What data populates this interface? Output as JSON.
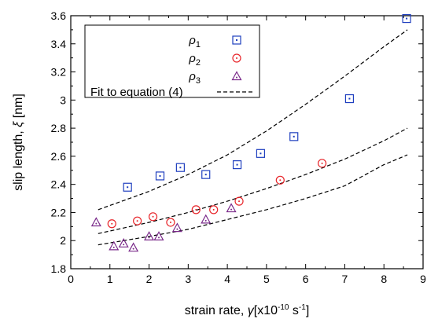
{
  "chart_data": {
    "type": "scatter",
    "xlabel": "strain rate, γ[x10⁻¹⁰ s⁻¹]",
    "ylabel": "slip length, ξ [nm]",
    "xlim": [
      0,
      9
    ],
    "ylim": [
      1.8,
      3.6
    ],
    "xticks": [
      "0",
      "1",
      "2",
      "3",
      "4",
      "5",
      "6",
      "7",
      "8",
      "9"
    ],
    "yticks": [
      "1.8",
      "2",
      "2.2",
      "2.4",
      "2.6",
      "2.8",
      "3",
      "3.2",
      "3.4",
      "3.6"
    ],
    "grid": false,
    "legend_position": "top-left",
    "series": [
      {
        "name": "ρ1",
        "marker": "square",
        "color": "#1f3fbf",
        "x": [
          1.45,
          2.28,
          2.8,
          3.45,
          4.25,
          4.85,
          5.7,
          7.12,
          8.58
        ],
        "y": [
          2.38,
          2.46,
          2.52,
          2.47,
          2.54,
          2.62,
          2.74,
          3.01,
          3.58
        ]
      },
      {
        "name": "ρ2",
        "marker": "circle",
        "color": "#e8262b",
        "x": [
          1.05,
          1.7,
          2.1,
          2.55,
          3.2,
          3.65,
          4.3,
          5.35,
          6.42
        ],
        "y": [
          2.12,
          2.14,
          2.17,
          2.13,
          2.22,
          2.22,
          2.28,
          2.43,
          2.55
        ]
      },
      {
        "name": "ρ3",
        "marker": "triangle",
        "color": "#7a2a8a",
        "x": [
          0.65,
          1.1,
          1.35,
          1.6,
          2.0,
          2.25,
          2.72,
          3.45,
          4.1
        ],
        "y": [
          2.13,
          1.96,
          1.98,
          1.95,
          2.03,
          2.03,
          2.09,
          2.15,
          2.23
        ]
      }
    ],
    "fits": {
      "legend_label": "Fit to equation (4)",
      "style": "dashed",
      "color": "#000000",
      "curves": [
        {
          "x": [
            0.7,
            2,
            3,
            4,
            5,
            6,
            7,
            8,
            8.6
          ],
          "y": [
            2.22,
            2.35,
            2.47,
            2.61,
            2.78,
            2.97,
            3.17,
            3.38,
            3.5
          ]
        },
        {
          "x": [
            0.7,
            2,
            3,
            4,
            5,
            6,
            7,
            8,
            8.6
          ],
          "y": [
            2.05,
            2.13,
            2.2,
            2.28,
            2.37,
            2.47,
            2.58,
            2.71,
            2.8
          ]
        },
        {
          "x": [
            0.7,
            2,
            3,
            4,
            5,
            6,
            7,
            8,
            8.6
          ],
          "y": [
            1.97,
            2.03,
            2.08,
            2.15,
            2.22,
            2.3,
            2.39,
            2.54,
            2.61
          ]
        }
      ]
    }
  }
}
